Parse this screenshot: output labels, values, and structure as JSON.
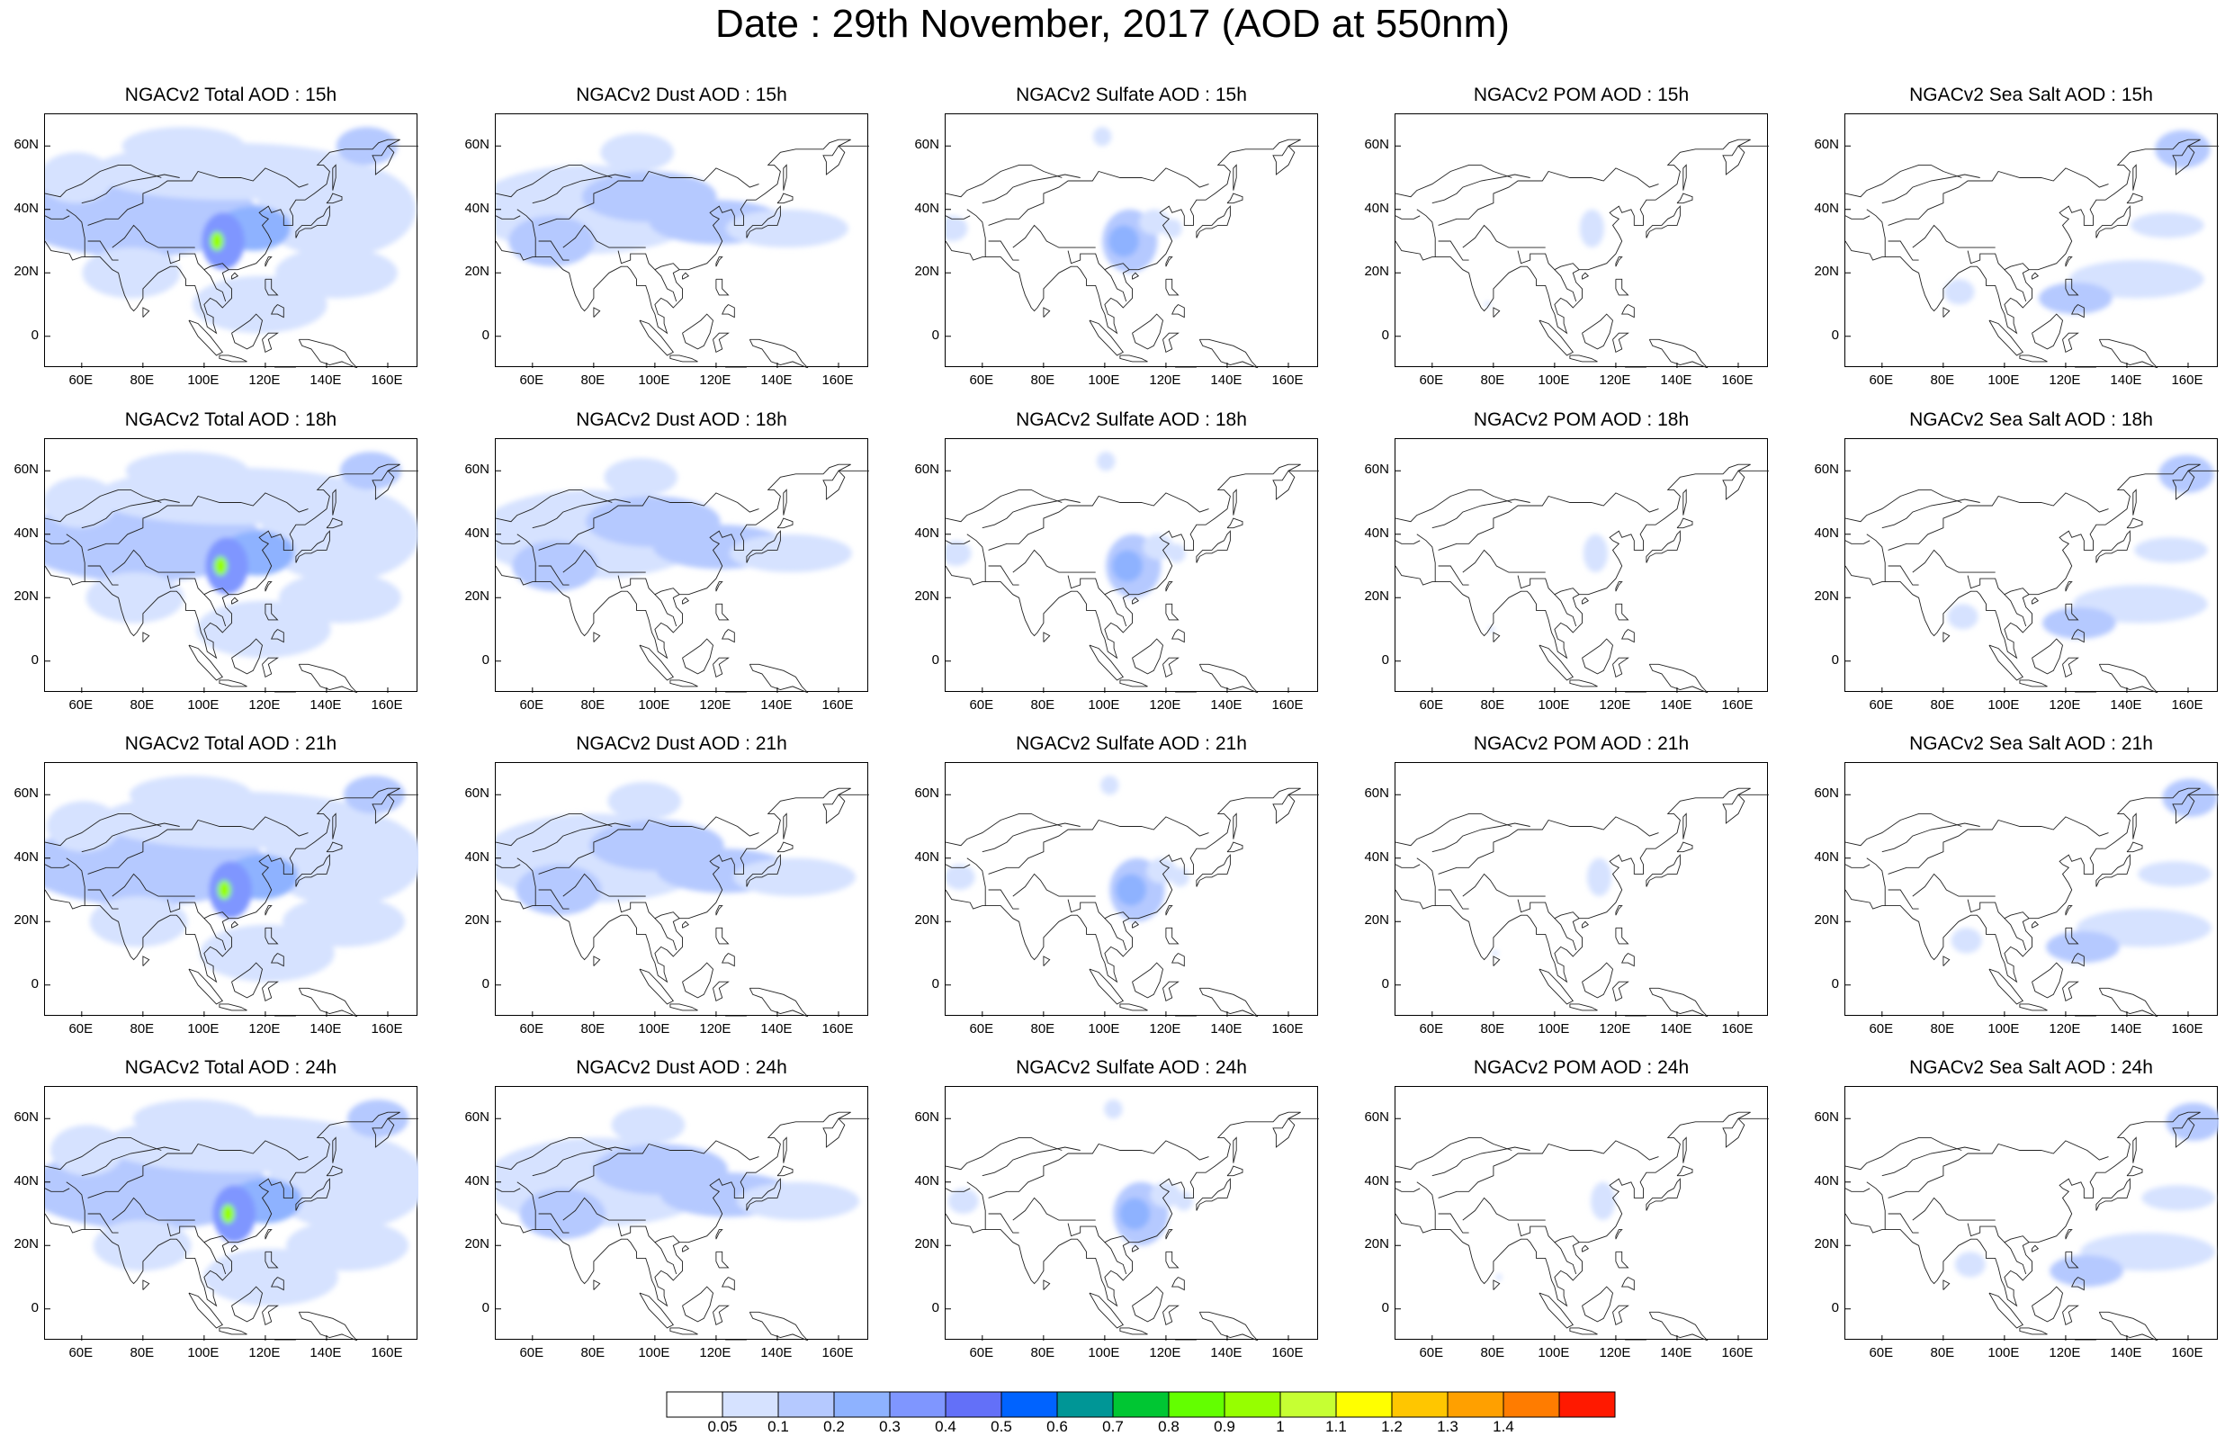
{
  "title": "Date : 29th November, 2017 (AOD at 550nm)",
  "species": [
    {
      "key": "total",
      "label": "Total"
    },
    {
      "key": "dust",
      "label": "Dust"
    },
    {
      "key": "sulfate",
      "label": "Sulfate"
    },
    {
      "key": "pom",
      "label": "POM"
    },
    {
      "key": "seasalt",
      "label": "Sea Salt"
    }
  ],
  "panels": [
    [
      "NGACv2 Total AOD : 15h",
      "NGACv2 Dust AOD : 15h",
      "NGACv2 Sulfate AOD : 15h",
      "NGACv2 POM AOD : 15h",
      "NGACv2 Sea Salt AOD : 15h"
    ],
    [
      "NGACv2 Total AOD : 18h",
      "NGACv2 Dust AOD : 18h",
      "NGACv2 Sulfate AOD : 18h",
      "NGACv2 POM AOD : 18h",
      "NGACv2 Sea Salt AOD : 18h"
    ],
    [
      "NGACv2 Total AOD : 21h",
      "NGACv2 Dust AOD : 21h",
      "NGACv2 Sulfate AOD : 21h",
      "NGACv2 POM AOD : 21h",
      "NGACv2 Sea Salt AOD : 21h"
    ],
    [
      "NGACv2 Total AOD : 24h",
      "NGACv2 Dust AOD : 24h",
      "NGACv2 Sulfate AOD : 24h",
      "NGACv2 POM AOD : 24h",
      "NGACv2 Sea Salt  AOD : 24h"
    ]
  ],
  "map": {
    "lon_range": [
      48,
      170
    ],
    "lat_range": [
      -10,
      70
    ],
    "lon_ticks": [
      "60E",
      "80E",
      "100E",
      "120E",
      "140E",
      "160E"
    ],
    "lon_tick_values": [
      60,
      80,
      100,
      120,
      140,
      160
    ],
    "lat_ticks": [
      "60N",
      "40N",
      "20N",
      "0"
    ],
    "lat_tick_values": [
      60,
      40,
      20,
      0
    ]
  },
  "colorbar": {
    "colors": [
      "#ffffff",
      "#d6e2ff",
      "#b5c9ff",
      "#8eb2ff",
      "#7f96ff",
      "#6370f8",
      "#0063ff",
      "#009696",
      "#00c633",
      "#63ff00",
      "#96ff00",
      "#c6ff33",
      "#ffff00",
      "#ffc600",
      "#ffa000",
      "#ff7c00",
      "#ff1900"
    ],
    "labels": [
      "0.05",
      "0.1",
      "0.2",
      "0.3",
      "0.4",
      "0.5",
      "0.6",
      "0.7",
      "0.8",
      "0.9",
      "1",
      "1.1",
      "1.2",
      "1.3",
      "1.4"
    ]
  }
}
